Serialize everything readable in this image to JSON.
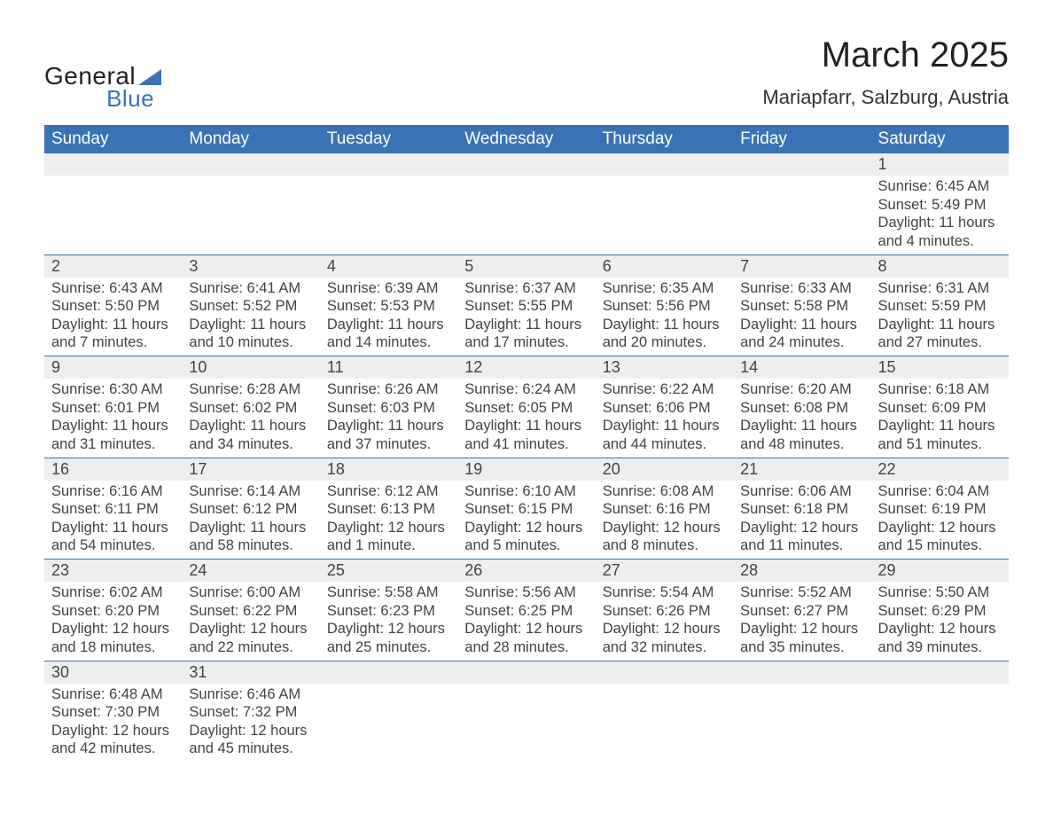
{
  "logo": {
    "word1": "General",
    "word2": "Blue",
    "shape_color": "#3a73b5",
    "text_color1": "#222222",
    "text_color2": "#3a73b5"
  },
  "header": {
    "title": "March 2025",
    "location": "Mariapfarr, Salzburg, Austria"
  },
  "colors": {
    "header_bg": "#3a73b5",
    "header_text": "#ffffff",
    "daynum_bg": "#eeeeee",
    "text": "#444444",
    "row_border": "#3a73b5",
    "page_bg": "#ffffff"
  },
  "fonts": {
    "title_size_pt": 30,
    "location_size_pt": 17,
    "header_size_pt": 14,
    "body_size_pt": 12
  },
  "days_of_week": [
    "Sunday",
    "Monday",
    "Tuesday",
    "Wednesday",
    "Thursday",
    "Friday",
    "Saturday"
  ],
  "calendar": {
    "start_day_index": 6,
    "num_days": 31,
    "days": [
      {
        "n": 1,
        "sunrise": "6:45 AM",
        "sunset": "5:49 PM",
        "daylight": "11 hours and 4 minutes."
      },
      {
        "n": 2,
        "sunrise": "6:43 AM",
        "sunset": "5:50 PM",
        "daylight": "11 hours and 7 minutes."
      },
      {
        "n": 3,
        "sunrise": "6:41 AM",
        "sunset": "5:52 PM",
        "daylight": "11 hours and 10 minutes."
      },
      {
        "n": 4,
        "sunrise": "6:39 AM",
        "sunset": "5:53 PM",
        "daylight": "11 hours and 14 minutes."
      },
      {
        "n": 5,
        "sunrise": "6:37 AM",
        "sunset": "5:55 PM",
        "daylight": "11 hours and 17 minutes."
      },
      {
        "n": 6,
        "sunrise": "6:35 AM",
        "sunset": "5:56 PM",
        "daylight": "11 hours and 20 minutes."
      },
      {
        "n": 7,
        "sunrise": "6:33 AM",
        "sunset": "5:58 PM",
        "daylight": "11 hours and 24 minutes."
      },
      {
        "n": 8,
        "sunrise": "6:31 AM",
        "sunset": "5:59 PM",
        "daylight": "11 hours and 27 minutes."
      },
      {
        "n": 9,
        "sunrise": "6:30 AM",
        "sunset": "6:01 PM",
        "daylight": "11 hours and 31 minutes."
      },
      {
        "n": 10,
        "sunrise": "6:28 AM",
        "sunset": "6:02 PM",
        "daylight": "11 hours and 34 minutes."
      },
      {
        "n": 11,
        "sunrise": "6:26 AM",
        "sunset": "6:03 PM",
        "daylight": "11 hours and 37 minutes."
      },
      {
        "n": 12,
        "sunrise": "6:24 AM",
        "sunset": "6:05 PM",
        "daylight": "11 hours and 41 minutes."
      },
      {
        "n": 13,
        "sunrise": "6:22 AM",
        "sunset": "6:06 PM",
        "daylight": "11 hours and 44 minutes."
      },
      {
        "n": 14,
        "sunrise": "6:20 AM",
        "sunset": "6:08 PM",
        "daylight": "11 hours and 48 minutes."
      },
      {
        "n": 15,
        "sunrise": "6:18 AM",
        "sunset": "6:09 PM",
        "daylight": "11 hours and 51 minutes."
      },
      {
        "n": 16,
        "sunrise": "6:16 AM",
        "sunset": "6:11 PM",
        "daylight": "11 hours and 54 minutes."
      },
      {
        "n": 17,
        "sunrise": "6:14 AM",
        "sunset": "6:12 PM",
        "daylight": "11 hours and 58 minutes."
      },
      {
        "n": 18,
        "sunrise": "6:12 AM",
        "sunset": "6:13 PM",
        "daylight": "12 hours and 1 minute."
      },
      {
        "n": 19,
        "sunrise": "6:10 AM",
        "sunset": "6:15 PM",
        "daylight": "12 hours and 5 minutes."
      },
      {
        "n": 20,
        "sunrise": "6:08 AM",
        "sunset": "6:16 PM",
        "daylight": "12 hours and 8 minutes."
      },
      {
        "n": 21,
        "sunrise": "6:06 AM",
        "sunset": "6:18 PM",
        "daylight": "12 hours and 11 minutes."
      },
      {
        "n": 22,
        "sunrise": "6:04 AM",
        "sunset": "6:19 PM",
        "daylight": "12 hours and 15 minutes."
      },
      {
        "n": 23,
        "sunrise": "6:02 AM",
        "sunset": "6:20 PM",
        "daylight": "12 hours and 18 minutes."
      },
      {
        "n": 24,
        "sunrise": "6:00 AM",
        "sunset": "6:22 PM",
        "daylight": "12 hours and 22 minutes."
      },
      {
        "n": 25,
        "sunrise": "5:58 AM",
        "sunset": "6:23 PM",
        "daylight": "12 hours and 25 minutes."
      },
      {
        "n": 26,
        "sunrise": "5:56 AM",
        "sunset": "6:25 PM",
        "daylight": "12 hours and 28 minutes."
      },
      {
        "n": 27,
        "sunrise": "5:54 AM",
        "sunset": "6:26 PM",
        "daylight": "12 hours and 32 minutes."
      },
      {
        "n": 28,
        "sunrise": "5:52 AM",
        "sunset": "6:27 PM",
        "daylight": "12 hours and 35 minutes."
      },
      {
        "n": 29,
        "sunrise": "5:50 AM",
        "sunset": "6:29 PM",
        "daylight": "12 hours and 39 minutes."
      },
      {
        "n": 30,
        "sunrise": "6:48 AM",
        "sunset": "7:30 PM",
        "daylight": "12 hours and 42 minutes."
      },
      {
        "n": 31,
        "sunrise": "6:46 AM",
        "sunset": "7:32 PM",
        "daylight": "12 hours and 45 minutes."
      }
    ]
  },
  "labels": {
    "sunrise": "Sunrise: ",
    "sunset": "Sunset: ",
    "daylight": "Daylight: "
  }
}
